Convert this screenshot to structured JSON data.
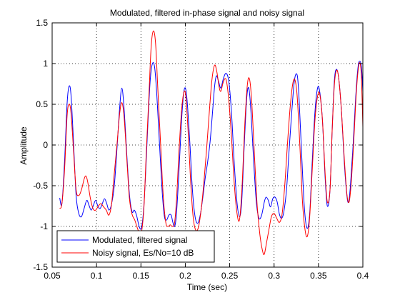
{
  "chart_data": {
    "type": "line",
    "title": "Modulated, filtered in-phase signal and noisy signal",
    "xlabel": "Time (sec)",
    "ylabel": "Amplitude",
    "xlim": [
      0.05,
      0.4
    ],
    "ylim": [
      -1.5,
      1.5
    ],
    "grid": true,
    "legend_position": "bottom-left",
    "x_ticks": [
      0.05,
      0.1,
      0.15,
      0.2,
      0.25,
      0.3,
      0.35,
      0.4
    ],
    "x_tick_labels": [
      "0.05",
      "0.1",
      "0.15",
      "0.2",
      "0.25",
      "0.3",
      "0.35",
      "0.4"
    ],
    "y_ticks": [
      -1.5,
      -1,
      -0.5,
      0,
      0.5,
      1,
      1.5
    ],
    "y_tick_labels": [
      "-1.5",
      "-1",
      "-0.5",
      "0",
      "0.5",
      "1",
      "1.5"
    ],
    "series": [
      {
        "name": "Modulated, filtered signal",
        "color": "#0000ff",
        "points": [
          [
            0.0585,
            -0.65
          ],
          [
            0.061,
            -0.72
          ],
          [
            0.064,
            -0.2
          ],
          [
            0.0668,
            0.5
          ],
          [
            0.069,
            0.72
          ],
          [
            0.0712,
            0.62
          ],
          [
            0.074,
            0.05
          ],
          [
            0.077,
            -0.62
          ],
          [
            0.08,
            -0.84
          ],
          [
            0.083,
            -0.88
          ],
          [
            0.086,
            -0.78
          ],
          [
            0.089,
            -0.68
          ],
          [
            0.0915,
            -0.74
          ],
          [
            0.094,
            -0.8
          ],
          [
            0.0965,
            -0.74
          ],
          [
            0.099,
            -0.68
          ],
          [
            0.1015,
            -0.75
          ],
          [
            0.104,
            -0.78
          ],
          [
            0.1065,
            -0.72
          ],
          [
            0.109,
            -0.66
          ],
          [
            0.1115,
            -0.72
          ],
          [
            0.114,
            -0.8
          ],
          [
            0.117,
            -0.72
          ],
          [
            0.12,
            -0.5
          ],
          [
            0.123,
            -0.05
          ],
          [
            0.126,
            0.45
          ],
          [
            0.1285,
            0.7
          ],
          [
            0.131,
            0.45
          ],
          [
            0.134,
            -0.1
          ],
          [
            0.137,
            -0.6
          ],
          [
            0.14,
            -0.82
          ],
          [
            0.1425,
            -0.8
          ],
          [
            0.145,
            -0.86
          ],
          [
            0.148,
            -1.0
          ],
          [
            0.1505,
            -1.02
          ],
          [
            0.153,
            -0.8
          ],
          [
            0.1555,
            -0.3
          ],
          [
            0.158,
            0.3
          ],
          [
            0.1605,
            0.8
          ],
          [
            0.163,
            1.0
          ],
          [
            0.1655,
            0.95
          ],
          [
            0.168,
            0.6
          ],
          [
            0.171,
            0.0
          ],
          [
            0.174,
            -0.58
          ],
          [
            0.1765,
            -0.88
          ],
          [
            0.179,
            -0.92
          ],
          [
            0.1815,
            -0.86
          ],
          [
            0.184,
            -0.86
          ],
          [
            0.186,
            -0.95
          ],
          [
            0.188,
            -1.0
          ],
          [
            0.19,
            -0.85
          ],
          [
            0.1925,
            -0.4
          ],
          [
            0.1955,
            0.25
          ],
          [
            0.198,
            0.62
          ],
          [
            0.2,
            0.7
          ],
          [
            0.202,
            0.55
          ],
          [
            0.205,
            0.05
          ],
          [
            0.208,
            -0.55
          ],
          [
            0.211,
            -0.88
          ],
          [
            0.214,
            -0.96
          ],
          [
            0.217,
            -0.85
          ],
          [
            0.22,
            -0.62
          ],
          [
            0.2225,
            -0.4
          ],
          [
            0.225,
            -0.22
          ],
          [
            0.228,
            0.05
          ],
          [
            0.231,
            0.45
          ],
          [
            0.233,
            0.72
          ],
          [
            0.235,
            0.85
          ],
          [
            0.2375,
            0.78
          ],
          [
            0.24,
            0.7
          ],
          [
            0.243,
            0.82
          ],
          [
            0.246,
            0.88
          ],
          [
            0.249,
            0.78
          ],
          [
            0.252,
            0.4
          ],
          [
            0.255,
            -0.2
          ],
          [
            0.258,
            -0.68
          ],
          [
            0.261,
            -0.88
          ],
          [
            0.2635,
            -0.7
          ],
          [
            0.266,
            -0.1
          ],
          [
            0.269,
            0.55
          ],
          [
            0.2715,
            0.7
          ],
          [
            0.274,
            0.4
          ],
          [
            0.277,
            -0.2
          ],
          [
            0.28,
            -0.7
          ],
          [
            0.283,
            -0.9
          ],
          [
            0.286,
            -0.86
          ],
          [
            0.289,
            -0.7
          ],
          [
            0.291,
            -0.64
          ],
          [
            0.2935,
            -0.68
          ],
          [
            0.296,
            -0.76
          ],
          [
            0.2985,
            -0.66
          ],
          [
            0.301,
            -0.64
          ],
          [
            0.3035,
            -0.7
          ],
          [
            0.306,
            -0.85
          ],
          [
            0.3085,
            -0.9
          ],
          [
            0.311,
            -0.82
          ],
          [
            0.314,
            -0.55
          ],
          [
            0.317,
            -0.05
          ],
          [
            0.32,
            0.42
          ],
          [
            0.323,
            0.8
          ],
          [
            0.326,
            0.86
          ],
          [
            0.328,
            0.6
          ],
          [
            0.331,
            -0.1
          ],
          [
            0.334,
            -0.75
          ],
          [
            0.337,
            -1.02
          ],
          [
            0.34,
            -0.86
          ],
          [
            0.343,
            -0.2
          ],
          [
            0.346,
            0.4
          ],
          [
            0.349,
            0.7
          ],
          [
            0.3515,
            0.65
          ],
          [
            0.3545,
            0.3
          ],
          [
            0.3575,
            -0.4
          ],
          [
            0.36,
            -0.75
          ],
          [
            0.363,
            -0.55
          ],
          [
            0.3655,
            0.2
          ],
          [
            0.368,
            0.8
          ],
          [
            0.3705,
            0.93
          ],
          [
            0.373,
            0.8
          ],
          [
            0.376,
            0.4
          ],
          [
            0.379,
            -0.2
          ],
          [
            0.382,
            -0.62
          ],
          [
            0.384,
            -0.7
          ],
          [
            0.386,
            -0.5
          ],
          [
            0.389,
            0.0
          ],
          [
            0.392,
            0.6
          ],
          [
            0.3945,
            0.95
          ],
          [
            0.3965,
            1.03
          ],
          [
            0.3985,
            0.95
          ],
          [
            0.4,
            0.65
          ]
        ]
      },
      {
        "name": "Noisy signal, Es/No=10 dB",
        "color": "#ff0000",
        "points": [
          [
            0.0585,
            -0.78
          ],
          [
            0.061,
            -0.72
          ],
          [
            0.064,
            -0.3
          ],
          [
            0.0668,
            0.35
          ],
          [
            0.069,
            0.5
          ],
          [
            0.0712,
            0.4
          ],
          [
            0.074,
            -0.05
          ],
          [
            0.077,
            -0.55
          ],
          [
            0.08,
            -0.62
          ],
          [
            0.083,
            -0.55
          ],
          [
            0.086,
            -0.42
          ],
          [
            0.088,
            -0.38
          ],
          [
            0.09,
            -0.45
          ],
          [
            0.093,
            -0.65
          ],
          [
            0.096,
            -0.78
          ],
          [
            0.099,
            -0.8
          ],
          [
            0.102,
            -0.75
          ],
          [
            0.105,
            -0.72
          ],
          [
            0.108,
            -0.76
          ],
          [
            0.111,
            -0.8
          ],
          [
            0.114,
            -0.86
          ],
          [
            0.117,
            -0.72
          ],
          [
            0.12,
            -0.35
          ],
          [
            0.123,
            0.0
          ],
          [
            0.126,
            0.38
          ],
          [
            0.1285,
            0.52
          ],
          [
            0.131,
            0.35
          ],
          [
            0.134,
            -0.15
          ],
          [
            0.137,
            -0.65
          ],
          [
            0.14,
            -0.85
          ],
          [
            0.143,
            -0.92
          ],
          [
            0.146,
            -1.02
          ],
          [
            0.149,
            -1.1
          ],
          [
            0.151,
            -1.05
          ],
          [
            0.1535,
            -0.75
          ],
          [
            0.156,
            -0.1
          ],
          [
            0.159,
            0.6
          ],
          [
            0.1615,
            1.2
          ],
          [
            0.164,
            1.4
          ],
          [
            0.1665,
            1.25
          ],
          [
            0.169,
            0.7
          ],
          [
            0.172,
            0.05
          ],
          [
            0.175,
            -0.6
          ],
          [
            0.178,
            -0.95
          ],
          [
            0.1805,
            -1.0
          ],
          [
            0.183,
            -0.98
          ],
          [
            0.1855,
            -1.0
          ],
          [
            0.188,
            -0.95
          ],
          [
            0.1905,
            -0.6
          ],
          [
            0.193,
            -0.05
          ],
          [
            0.196,
            0.45
          ],
          [
            0.1985,
            0.65
          ],
          [
            0.2005,
            0.6
          ],
          [
            0.203,
            0.2
          ],
          [
            0.206,
            -0.45
          ],
          [
            0.209,
            -0.9
          ],
          [
            0.212,
            -1.05
          ],
          [
            0.215,
            -1.0
          ],
          [
            0.218,
            -0.78
          ],
          [
            0.221,
            -0.45
          ],
          [
            0.224,
            -0.05
          ],
          [
            0.227,
            0.4
          ],
          [
            0.23,
            0.8
          ],
          [
            0.233,
            0.98
          ],
          [
            0.2355,
            0.9
          ],
          [
            0.238,
            0.72
          ],
          [
            0.24,
            0.66
          ],
          [
            0.243,
            0.78
          ],
          [
            0.246,
            0.8
          ],
          [
            0.249,
            0.55
          ],
          [
            0.252,
            0.1
          ],
          [
            0.255,
            -0.45
          ],
          [
            0.258,
            -0.82
          ],
          [
            0.261,
            -0.92
          ],
          [
            0.264,
            -0.5
          ],
          [
            0.267,
            0.25
          ],
          [
            0.27,
            0.75
          ],
          [
            0.2725,
            0.8
          ],
          [
            0.275,
            0.5
          ],
          [
            0.278,
            -0.15
          ],
          [
            0.281,
            -0.75
          ],
          [
            0.284,
            -1.1
          ],
          [
            0.287,
            -1.3
          ],
          [
            0.289,
            -1.34
          ],
          [
            0.2915,
            -1.2
          ],
          [
            0.2945,
            -1.02
          ],
          [
            0.297,
            -0.88
          ],
          [
            0.3,
            -0.84
          ],
          [
            0.303,
            -0.9
          ],
          [
            0.306,
            -0.95
          ],
          [
            0.309,
            -0.85
          ],
          [
            0.312,
            -0.5
          ],
          [
            0.315,
            0.0
          ],
          [
            0.318,
            0.45
          ],
          [
            0.321,
            0.75
          ],
          [
            0.3235,
            0.8
          ],
          [
            0.326,
            0.6
          ],
          [
            0.329,
            0.0
          ],
          [
            0.332,
            -0.7
          ],
          [
            0.335,
            -1.05
          ],
          [
            0.3375,
            -1.12
          ],
          [
            0.34,
            -0.9
          ],
          [
            0.343,
            -0.3
          ],
          [
            0.346,
            0.3
          ],
          [
            0.349,
            0.6
          ],
          [
            0.3515,
            0.62
          ],
          [
            0.3545,
            0.3
          ],
          [
            0.3575,
            -0.35
          ],
          [
            0.36,
            -0.7
          ],
          [
            0.363,
            -0.55
          ],
          [
            0.3655,
            0.2
          ],
          [
            0.368,
            0.75
          ],
          [
            0.3705,
            0.92
          ],
          [
            0.373,
            0.8
          ],
          [
            0.376,
            0.4
          ],
          [
            0.379,
            -0.15
          ],
          [
            0.382,
            -0.6
          ],
          [
            0.3845,
            -0.7
          ],
          [
            0.387,
            -0.45
          ],
          [
            0.39,
            0.1
          ],
          [
            0.3925,
            0.62
          ],
          [
            0.395,
            0.95
          ],
          [
            0.397,
            1.0
          ],
          [
            0.3985,
            0.8
          ],
          [
            0.4,
            0.22
          ]
        ]
      }
    ]
  }
}
